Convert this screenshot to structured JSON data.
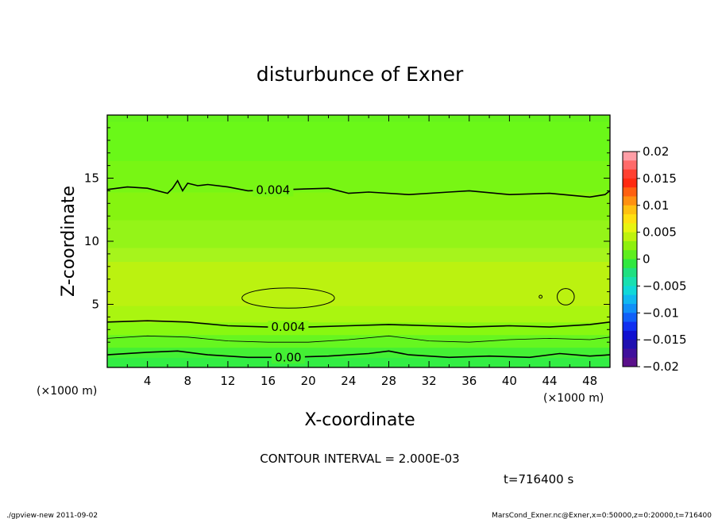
{
  "chart_data": {
    "type": "contour",
    "title": "disturbunce of Exner",
    "xlabel": "X-coordinate",
    "ylabel": "Z-coordinate",
    "xunit_left": "(×1000 m)",
    "xunit_right": "(×1000 m)",
    "xlim": [
      0,
      50
    ],
    "ylim": [
      0,
      20
    ],
    "xticks": [
      "4",
      "8",
      "12",
      "16",
      "20",
      "24",
      "28",
      "32",
      "36",
      "40",
      "44",
      "48"
    ],
    "yticks": [
      "5",
      "10",
      "15"
    ],
    "contour_interval_text": "CONTOUR INTERVAL = 2.000E-03",
    "time_text": "t=716400 s",
    "contour_labels": [
      "0.004",
      "0.004",
      "0.00"
    ],
    "contour_lines": [
      {
        "name": "upper-0.004",
        "label": "0.004",
        "label_x": 16.5,
        "x": [
          0,
          2,
          4,
          6,
          6.5,
          7,
          7.5,
          8,
          9,
          10,
          12,
          14,
          18,
          22,
          24,
          26,
          30,
          34,
          36,
          40,
          44,
          48,
          49.5,
          50
        ],
        "y": [
          14.1,
          14.3,
          14.2,
          13.8,
          14.2,
          14.8,
          14.0,
          14.6,
          14.4,
          14.5,
          14.3,
          14.0,
          14.1,
          14.2,
          13.8,
          13.9,
          13.7,
          13.9,
          14.0,
          13.7,
          13.8,
          13.5,
          13.7,
          14.0
        ]
      },
      {
        "name": "lower-0.004",
        "label": "0.004",
        "label_x": 18,
        "x": [
          0,
          4,
          8,
          12,
          16,
          20,
          24,
          28,
          32,
          36,
          40,
          44,
          48,
          50
        ],
        "y": [
          3.6,
          3.7,
          3.6,
          3.3,
          3.2,
          3.2,
          3.3,
          3.4,
          3.3,
          3.2,
          3.3,
          3.2,
          3.4,
          3.6
        ]
      },
      {
        "name": "0.002",
        "label": "",
        "x": [
          0,
          4,
          8,
          12,
          16,
          20,
          24,
          28,
          32,
          36,
          40,
          44,
          48,
          50
        ],
        "y": [
          2.3,
          2.5,
          2.4,
          2.1,
          2.0,
          2.0,
          2.2,
          2.5,
          2.1,
          2.0,
          2.2,
          2.3,
          2.2,
          2.4
        ]
      },
      {
        "name": "0.00",
        "label": "0.00",
        "label_x": 18,
        "x": [
          0,
          4,
          7,
          10,
          14,
          18,
          22,
          26,
          28,
          30,
          34,
          38,
          42,
          45,
          48,
          50
        ],
        "y": [
          1.0,
          1.2,
          1.3,
          1.0,
          0.8,
          0.8,
          0.9,
          1.1,
          1.3,
          1.0,
          0.8,
          0.9,
          0.8,
          1.1,
          0.9,
          1.0
        ]
      }
    ],
    "closed_contours": [
      {
        "name": "blob-large",
        "cx": 18,
        "cy": 5.5,
        "rx": 4.6,
        "ry": 0.8
      },
      {
        "name": "blob-small",
        "cx": 45.6,
        "cy": 5.6,
        "rx": 0.85,
        "ry": 0.65
      },
      {
        "name": "blob-dot",
        "cx": 43.1,
        "cy": 5.6,
        "rx": 0.15,
        "ry": 0.12
      }
    ],
    "fill_bands": [
      {
        "z0": 0,
        "z1": 0.8,
        "value": -0.0005,
        "color": "#33ee44"
      },
      {
        "z0": 0.8,
        "z1": 1.6,
        "value": 0.0005,
        "color": "#44f034"
      },
      {
        "z0": 1.6,
        "z1": 2.6,
        "value": 0.0015,
        "color": "#66f620"
      },
      {
        "z0": 2.6,
        "z1": 3.6,
        "value": 0.0025,
        "color": "#88f810"
      },
      {
        "z0": 3.6,
        "z1": 4.9,
        "value": 0.0035,
        "color": "#aaf510"
      },
      {
        "z0": 4.9,
        "z1": 8.4,
        "value": 0.0045,
        "color": "#bbf210"
      },
      {
        "z0": 8.4,
        "z1": 9.5,
        "value": 0.0042,
        "color": "#a6f41c"
      },
      {
        "z0": 9.5,
        "z1": 11.7,
        "value": 0.0038,
        "color": "#94f418"
      },
      {
        "z0": 11.7,
        "z1": 13.9,
        "value": 0.0032,
        "color": "#86f410"
      },
      {
        "z0": 13.9,
        "z1": 16.4,
        "value": 0.0025,
        "color": "#78f614"
      },
      {
        "z0": 16.4,
        "z1": 19.5,
        "value": 0.0015,
        "color": "#6af818"
      },
      {
        "z0": 19.5,
        "z1": 20,
        "value": 0.001,
        "color": "#66f41c"
      }
    ],
    "colorbar": {
      "labels": [
        "0.02",
        "0.015",
        "0.01",
        "0.005",
        "0",
        "−0.005",
        "−0.01",
        "−0.015",
        "−0.02"
      ],
      "values": [
        0.02,
        0.015,
        0.01,
        0.005,
        0,
        -0.005,
        -0.01,
        -0.015,
        -0.02
      ],
      "colors_top_to_bottom": [
        "#ff9ea6",
        "#ff6a6a",
        "#ff4030",
        "#ff2a10",
        "#ff6010",
        "#ff9010",
        "#ffc010",
        "#ffe010",
        "#e8f410",
        "#bef20e",
        "#8ef00e",
        "#5eee1e",
        "#30e840",
        "#20e080",
        "#18e0b0",
        "#10d8d8",
        "#10b8f0",
        "#1090f8",
        "#1060f8",
        "#1030f0",
        "#1010d0",
        "#2010b0",
        "#40109c",
        "#5a108a"
      ]
    }
  },
  "footer": {
    "left": "./gpview-new   2011-09-02",
    "right": "MarsCond_Exner.nc@Exner,x=0:50000,z=0:20000,t=716400"
  }
}
